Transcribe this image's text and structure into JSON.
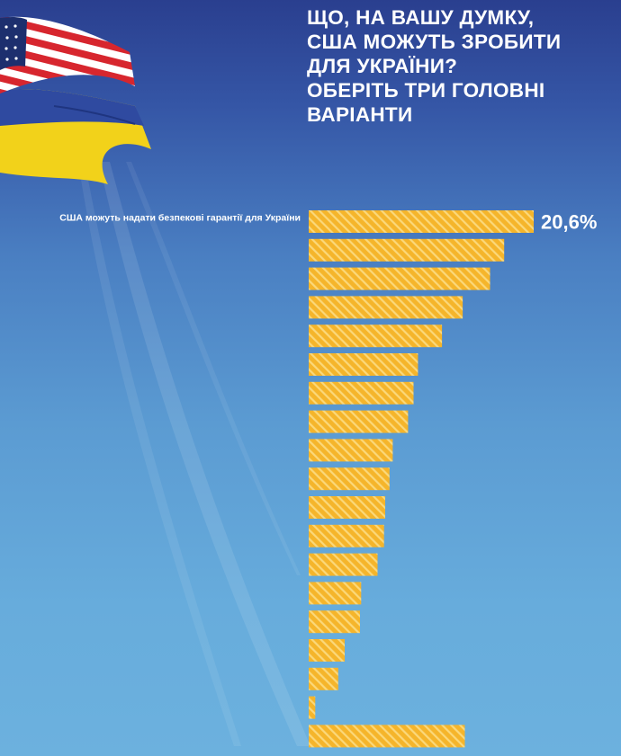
{
  "title": "ЩО, НА ВАШУ ДУМКУ,\nСША МОЖУТЬ ЗРОБИТИ\nДЛЯ УКРАЇНИ?\nОБЕРІТЬ ТРИ ГОЛОВНІ\nВАРІАНТИ",
  "colors": {
    "bar": "#f5b52b",
    "bar_hatch": "#fbd87a",
    "background_top": "#2a3f8f",
    "background_bottom": "#6cb1de"
  },
  "icons": [
    "usa-flag-icon",
    "ukraine-flag-icon"
  ],
  "chart_data": {
    "type": "bar",
    "orientation": "horizontal",
    "title": "ЩО, НА ВАШУ ДУМКУ, США МОЖУТЬ ЗРОБИТИ ДЛЯ УКРАЇНИ? ОБЕРІТЬ ТРИ ГОЛОВНІ ВАРІАНТИ",
    "categories": [
      "США можуть надати безпекові гарантії для України",
      "",
      "",
      "",
      "",
      "",
      "",
      "",
      "",
      "",
      "",
      "",
      "",
      "",
      "",
      "",
      "",
      "",
      ""
    ],
    "values": [
      20.6,
      17.9,
      16.6,
      14.1,
      12.2,
      10.0,
      9.6,
      9.1,
      7.7,
      7.4,
      7.0,
      6.9,
      6.3,
      4.8,
      4.7,
      3.3,
      2.7,
      0.6,
      14.3
    ],
    "value_labels": [
      "20,6%",
      "",
      "",
      "",
      "",
      "",
      "",
      "",
      "",
      "",
      "",
      "",
      "",
      "",
      "",
      "",
      "",
      "",
      ""
    ],
    "unit": "%",
    "xlim": [
      0,
      20.6
    ],
    "grid": false,
    "legend": "none"
  }
}
